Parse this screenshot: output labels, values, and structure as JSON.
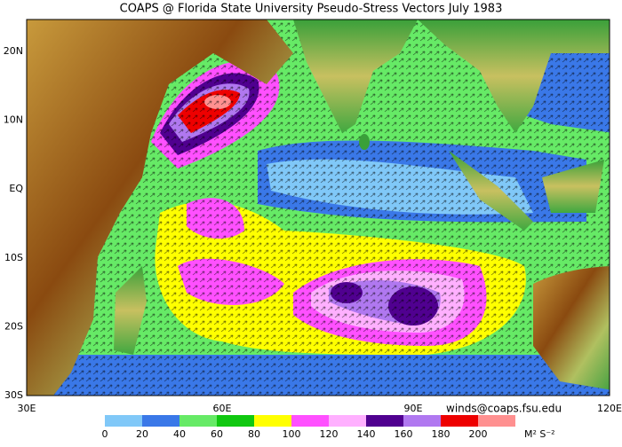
{
  "map": {
    "title": "COAPS @ Florida State University Pseudo-Stress Vectors  July 1983",
    "lat_labels": [
      "20N",
      "10N",
      "EQ",
      "10S",
      "20S",
      "30S"
    ],
    "lon_labels": [
      "30E",
      "60E",
      "90E",
      "120E"
    ],
    "credit": "winds@coaps.fsu.edu",
    "colorbar": {
      "colors": [
        "#80c8f8",
        "#3a78e8",
        "#66ea66",
        "#10c810",
        "#ffff00",
        "#ff50ff",
        "#ffb0ff",
        "#500090",
        "#b078f0",
        "#ee0000",
        "#ff9090"
      ],
      "labels": [
        0,
        20,
        40,
        60,
        80,
        100,
        120,
        140,
        160,
        180,
        200
      ],
      "unit": "M² S⁻²"
    }
  }
}
